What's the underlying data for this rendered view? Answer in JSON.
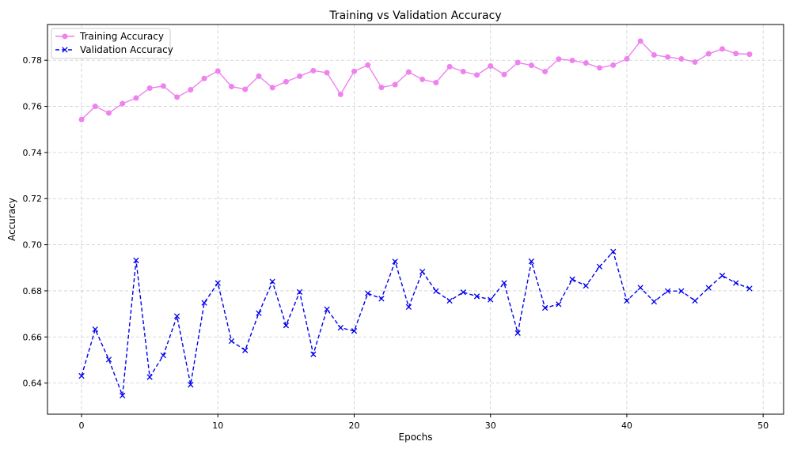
{
  "chart_data": {
    "type": "line",
    "title": "Training vs Validation Accuracy",
    "xlabel": "Epochs",
    "ylabel": "Accuracy",
    "xlim": [
      -2.5,
      51.5
    ],
    "ylim": [
      0.6265,
      0.7955
    ],
    "x_ticks": [
      0,
      10,
      20,
      30,
      40,
      50
    ],
    "y_ticks": [
      0.64,
      0.66,
      0.68,
      0.7,
      0.72,
      0.74,
      0.76,
      0.78
    ],
    "y_tick_labels": [
      "0.64",
      "0.66",
      "0.68",
      "0.70",
      "0.72",
      "0.74",
      "0.76",
      "0.78"
    ],
    "grid": true,
    "legend_position": "top-left",
    "x": [
      0,
      1,
      2,
      3,
      4,
      5,
      6,
      7,
      8,
      9,
      10,
      11,
      12,
      13,
      14,
      15,
      16,
      17,
      18,
      19,
      20,
      21,
      22,
      23,
      24,
      25,
      26,
      27,
      28,
      29,
      30,
      31,
      32,
      33,
      34,
      35,
      36,
      37,
      38,
      39,
      40,
      41,
      42,
      43,
      44,
      45,
      46,
      47,
      48,
      49
    ],
    "series": [
      {
        "name": "Training Accuracy",
        "color": "#ee82ee",
        "marker": "circle",
        "line_style": "solid",
        "values": [
          0.7543,
          0.76,
          0.7571,
          0.7612,
          0.7636,
          0.7679,
          0.7688,
          0.764,
          0.7672,
          0.7721,
          0.7753,
          0.7686,
          0.7674,
          0.7731,
          0.7681,
          0.7707,
          0.7731,
          0.7755,
          0.7746,
          0.7652,
          0.7752,
          0.7779,
          0.7682,
          0.7694,
          0.7749,
          0.7717,
          0.7703,
          0.7772,
          0.7751,
          0.7736,
          0.7775,
          0.7738,
          0.779,
          0.7778,
          0.7751,
          0.7805,
          0.7799,
          0.7788,
          0.7767,
          0.7779,
          0.7806,
          0.7883,
          0.7823,
          0.7814,
          0.7806,
          0.7792,
          0.7828,
          0.7849,
          0.7829,
          0.7826
        ]
      },
      {
        "name": "Validation Accuracy",
        "color": "#0000ee",
        "marker": "x",
        "line_style": "dashed",
        "values": [
          0.6431,
          0.6633,
          0.6502,
          0.6346,
          0.6932,
          0.6426,
          0.652,
          0.669,
          0.6393,
          0.6748,
          0.6834,
          0.6582,
          0.6542,
          0.6703,
          0.684,
          0.665,
          0.6795,
          0.6525,
          0.672,
          0.664,
          0.6626,
          0.6789,
          0.6766,
          0.6927,
          0.673,
          0.6883,
          0.6799,
          0.6757,
          0.6794,
          0.6776,
          0.6762,
          0.6834,
          0.6617,
          0.6928,
          0.6726,
          0.6742,
          0.685,
          0.6822,
          0.6905,
          0.697,
          0.6757,
          0.6814,
          0.6753,
          0.6799,
          0.6799,
          0.6757,
          0.6813,
          0.6866,
          0.6834,
          0.681
        ]
      }
    ]
  }
}
